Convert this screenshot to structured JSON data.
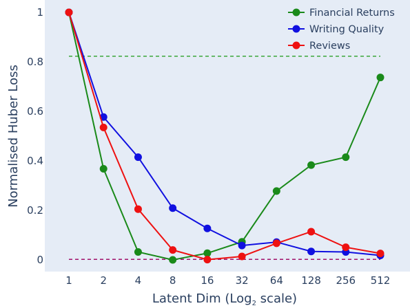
{
  "chart_data": {
    "type": "line",
    "title": "",
    "xlabel": "Latent Dim (Log",
    "xlabel_sub": "2",
    "xlabel_suffix": " scale)",
    "ylabel": "Normalised Huber Loss",
    "x": [
      1,
      2,
      4,
      8,
      16,
      32,
      64,
      128,
      256,
      512
    ],
    "x_tick_labels": [
      "1",
      "2",
      "4",
      "8",
      "16",
      "32",
      "64",
      "128",
      "256",
      "512"
    ],
    "x_scale": "log2",
    "y_ticks": [
      0,
      0.2,
      0.4,
      0.6,
      0.8,
      1
    ],
    "y_tick_labels": [
      "0",
      "0.2",
      "0.4",
      "0.6",
      "0.8",
      "1"
    ],
    "ylim": [
      -0.01,
      1.03
    ],
    "grid": false,
    "legend_position": "top-right",
    "series": [
      {
        "name": "Financial Returns",
        "color": "#1a8a1a",
        "values": [
          1.0,
          0.368,
          0.032,
          0.0,
          0.027,
          0.073,
          0.278,
          0.383,
          0.415,
          0.737
        ]
      },
      {
        "name": "Writing Quality",
        "color": "#1010e0",
        "values": [
          1.0,
          0.577,
          0.415,
          0.209,
          0.127,
          0.058,
          0.072,
          0.034,
          0.032,
          0.018
        ]
      },
      {
        "name": "Reviews",
        "color": "#ee1111",
        "values": [
          1.0,
          0.535,
          0.205,
          0.04,
          0.001,
          0.014,
          0.067,
          0.114,
          0.051,
          0.026
        ]
      }
    ],
    "reference_lines": [
      {
        "y": 0.823,
        "color": "#3aa63a",
        "style": "dashed"
      },
      {
        "y": 0.002,
        "color": "#a0106a",
        "style": "dashed"
      }
    ]
  }
}
